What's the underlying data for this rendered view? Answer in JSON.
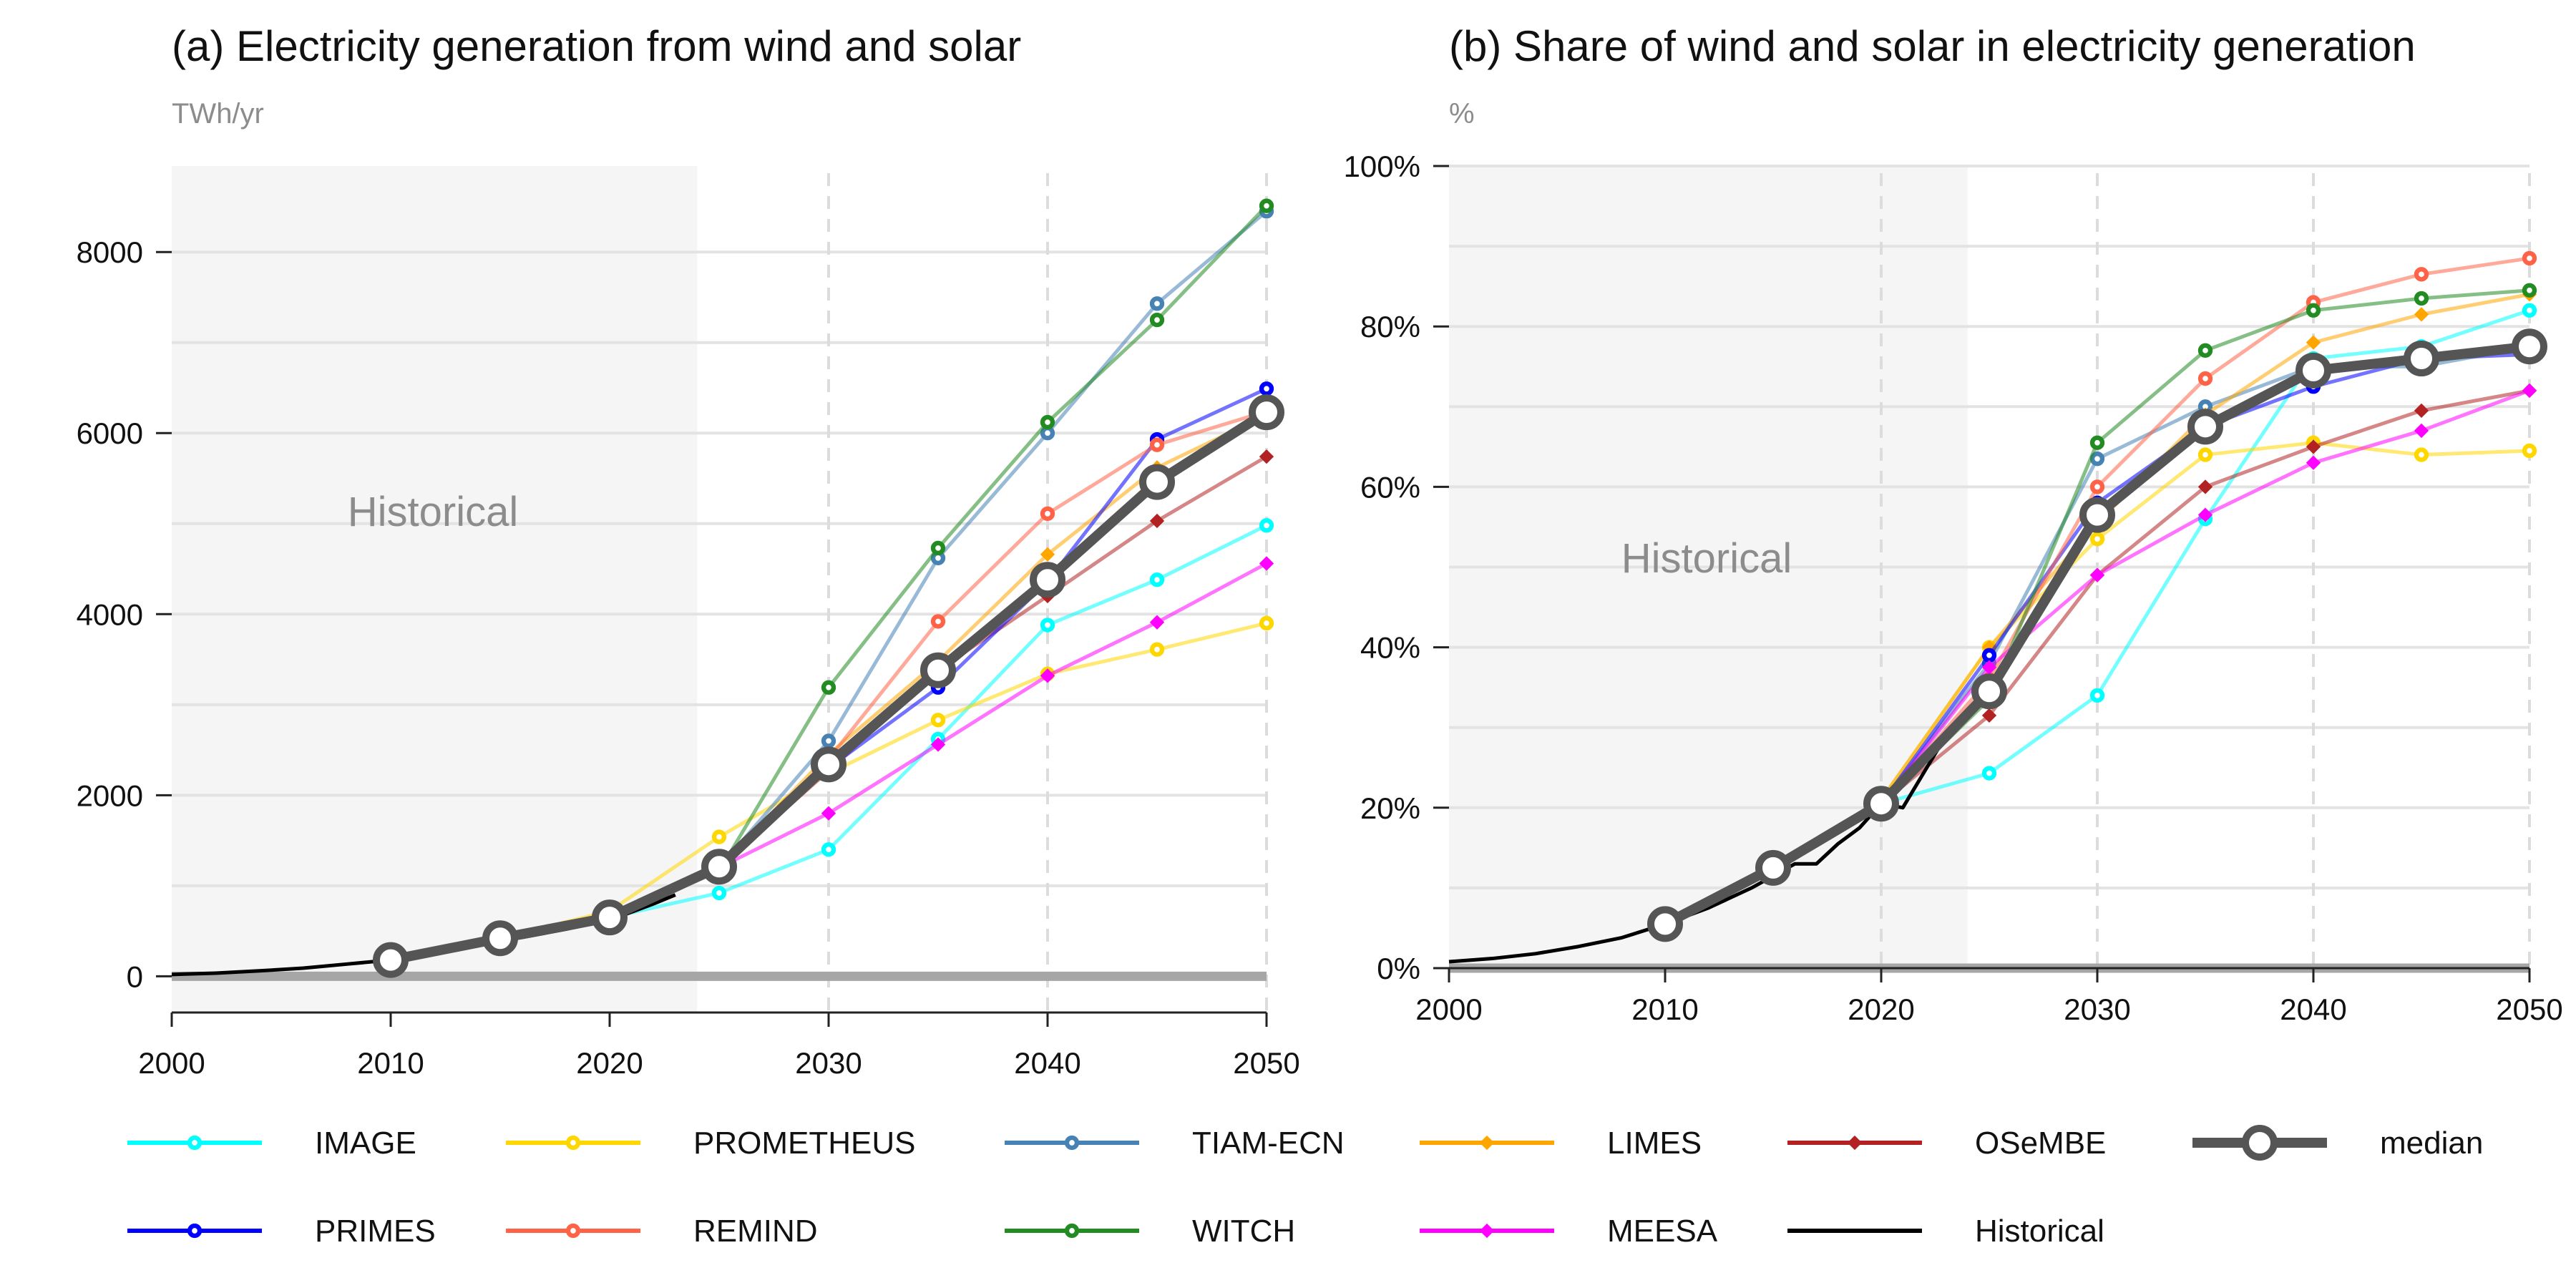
{
  "chart_data": [
    {
      "type": "line",
      "title": "(a) Electricity generation from wind and solar",
      "unit_label": "TWh/yr",
      "xlabel": "",
      "ylabel": "",
      "xlim": [
        2000,
        2050
      ],
      "ylim": [
        -400,
        8950
      ],
      "x_ticks": [
        2000,
        2010,
        2020,
        2030,
        2040,
        2050
      ],
      "x_tick_labels": [
        "2000",
        "2010",
        "2020",
        "2030",
        "2040",
        "2050"
      ],
      "y_ticks": [
        0,
        2000,
        4000,
        6000,
        8000
      ],
      "y_tick_labels": [
        "0",
        "2000",
        "4000",
        "6000",
        "8000"
      ],
      "historical_shade": {
        "label": "Historical",
        "from": 2000,
        "to": 2024
      },
      "grid": true,
      "vertical_dashed_lines": [
        2030,
        2040,
        2050
      ],
      "x": [
        2010,
        2015,
        2020,
        2025,
        2030,
        2035,
        2040,
        2045,
        2050
      ],
      "series": [
        {
          "name": "IMAGE",
          "color": "#00FFFF",
          "values": [
            180,
            420,
            650,
            920,
            1400,
            2620,
            3880,
            4380,
            4980
          ]
        },
        {
          "name": "PROMETHEUS",
          "color": "#FFD700",
          "values": [
            180,
            420,
            720,
            1540,
            2240,
            2830,
            3340,
            3610,
            3900
          ]
        },
        {
          "name": "TIAM-ECN",
          "color": "#4682B4",
          "values": [
            180,
            420,
            650,
            1200,
            2600,
            4620,
            6000,
            7430,
            8450
          ]
        },
        {
          "name": "LIMES",
          "color": "#FFA500",
          "values": [
            180,
            420,
            650,
            1200,
            2450,
            3480,
            4660,
            5620,
            6200
          ]
        },
        {
          "name": "OSeMBE",
          "color": "#B22222",
          "values": [
            180,
            420,
            650,
            1200,
            2270,
            3380,
            4200,
            5030,
            5740
          ]
        },
        {
          "name": "median",
          "color": "#555555",
          "values": [
            180,
            420,
            650,
            1210,
            2340,
            3380,
            4380,
            5460,
            6230
          ]
        },
        {
          "name": "PRIMES",
          "color": "#0000FF",
          "values": [
            180,
            420,
            650,
            1200,
            2300,
            3190,
            4360,
            5930,
            6490
          ]
        },
        {
          "name": "REMIND",
          "color": "#FF6347",
          "values": [
            180,
            420,
            650,
            1200,
            2400,
            3920,
            5110,
            5870,
            6240
          ]
        },
        {
          "name": "WITCH",
          "color": "#228B22",
          "values": [
            180,
            420,
            650,
            1160,
            3190,
            4730,
            6120,
            7250,
            8510
          ]
        },
        {
          "name": "MEESA",
          "color": "#FF00FF",
          "values": [
            180,
            420,
            650,
            1200,
            1800,
            2560,
            3320,
            3910,
            4560
          ]
        }
      ],
      "historical": {
        "name": "Historical",
        "color": "#000000",
        "x": [
          2000,
          2002,
          2004,
          2006,
          2008,
          2010,
          2012,
          2014,
          2016,
          2018,
          2020,
          2022,
          2023
        ],
        "values": [
          20,
          35,
          60,
          90,
          135,
          180,
          270,
          380,
          430,
          520,
          620,
          800,
          900
        ]
      }
    },
    {
      "type": "line",
      "title": "(b) Share of wind and solar in electricity generation",
      "unit_label": "%",
      "xlabel": "",
      "ylabel": "",
      "xlim": [
        2000,
        2050
      ],
      "ylim": [
        0,
        100
      ],
      "x_ticks": [
        2000,
        2010,
        2020,
        2030,
        2040,
        2050
      ],
      "x_tick_labels": [
        "2000",
        "2010",
        "2020",
        "2030",
        "2040",
        "2050"
      ],
      "y_ticks": [
        0,
        20,
        40,
        60,
        80,
        100
      ],
      "y_tick_labels": [
        "0%",
        "20%",
        "40%",
        "60%",
        "80%",
        "100%"
      ],
      "historical_shade": {
        "label": "Historical",
        "from": 2000,
        "to": 2024
      },
      "grid": true,
      "vertical_dashed_lines": [
        2020,
        2030,
        2040,
        2050
      ],
      "x": [
        2010,
        2015,
        2020,
        2025,
        2030,
        2035,
        2040,
        2045,
        2050
      ],
      "series": [
        {
          "name": "IMAGE",
          "color": "#00FFFF",
          "values": [
            5.5,
            12.5,
            20.5,
            24.3,
            34,
            56,
            76,
            77.5,
            82
          ]
        },
        {
          "name": "PROMETHEUS",
          "color": "#FFD700",
          "values": [
            5.5,
            12.5,
            21,
            40,
            53.5,
            64,
            65.5,
            64,
            64.5
          ]
        },
        {
          "name": "TIAM-ECN",
          "color": "#4682B4",
          "values": [
            5.5,
            12.5,
            20.5,
            38,
            63.5,
            70,
            75,
            75,
            77.5
          ]
        },
        {
          "name": "LIMES",
          "color": "#FFA500",
          "values": [
            5.5,
            12.5,
            21,
            40,
            55.5,
            69,
            78,
            81.5,
            84
          ]
        },
        {
          "name": "OSeMBE",
          "color": "#B22222",
          "values": [
            5.5,
            12.5,
            20.5,
            31.5,
            49,
            60,
            65,
            69.5,
            72
          ]
        },
        {
          "name": "median",
          "color": "#555555",
          "values": [
            5.5,
            12.5,
            20.5,
            34.5,
            56.5,
            67.5,
            74.5,
            76,
            77.5
          ]
        },
        {
          "name": "PRIMES",
          "color": "#0000FF",
          "values": [
            5.5,
            12.5,
            20.5,
            39,
            58,
            67.5,
            72.5,
            76,
            76.5
          ]
        },
        {
          "name": "REMIND",
          "color": "#FF6347",
          "values": [
            5.5,
            12.5,
            20.5,
            36,
            60,
            73.5,
            83,
            86.5,
            88.5
          ]
        },
        {
          "name": "WITCH",
          "color": "#228B22",
          "values": [
            5.5,
            12.5,
            20.5,
            33.5,
            65.5,
            77,
            82,
            83.5,
            84.5
          ]
        },
        {
          "name": "MEESA",
          "color": "#FF00FF",
          "values": [
            5.5,
            12.5,
            20.5,
            37.5,
            49,
            56.5,
            63,
            67,
            72
          ]
        }
      ],
      "historical": {
        "name": "Historical",
        "color": "#000000",
        "x": [
          2000,
          2002,
          2004,
          2006,
          2008,
          2010,
          2012,
          2014,
          2016,
          2017,
          2018,
          2019,
          2020,
          2021,
          2022,
          2023
        ],
        "values": [
          0.8,
          1.2,
          1.8,
          2.7,
          3.8,
          5.5,
          7.5,
          10,
          13,
          13,
          15.5,
          17.5,
          20.5,
          20,
          24.5,
          29
        ]
      }
    }
  ],
  "legend": [
    {
      "name": "IMAGE",
      "color": "#00FFFF",
      "marker": "circle"
    },
    {
      "name": "PROMETHEUS",
      "color": "#FFD700",
      "marker": "circle"
    },
    {
      "name": "TIAM-ECN",
      "color": "#4682B4",
      "marker": "circle"
    },
    {
      "name": "LIMES",
      "color": "#FFA500",
      "marker": "diamond"
    },
    {
      "name": "OSeMBE",
      "color": "#B22222",
      "marker": "diamond"
    },
    {
      "name": "median",
      "color": "#555555",
      "marker": "large-circle"
    },
    {
      "name": "PRIMES",
      "color": "#0000FF",
      "marker": "circle"
    },
    {
      "name": "REMIND",
      "color": "#FF6347",
      "marker": "circle"
    },
    {
      "name": "WITCH",
      "color": "#228B22",
      "marker": "circle"
    },
    {
      "name": "MEESA",
      "color": "#FF00FF",
      "marker": "diamond"
    },
    {
      "name": "Historical",
      "color": "#000000",
      "marker": "none"
    }
  ],
  "colors": {
    "grid": "#E3E3E3",
    "shade": "#F5F5F5",
    "zero_line": "#A6A6A6",
    "dashed": "#DCDCDC",
    "muted_text": "#8C8C8C"
  }
}
